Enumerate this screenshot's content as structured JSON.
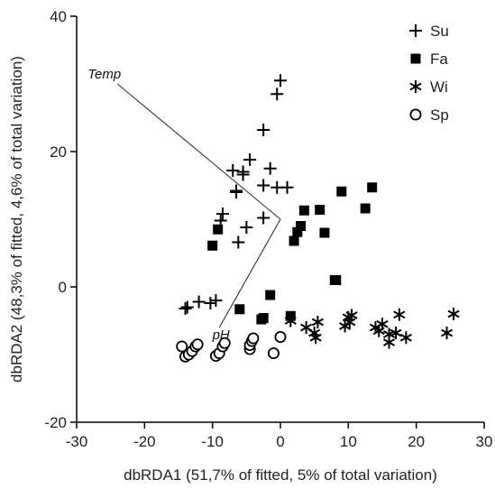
{
  "chart_data": {
    "type": "scatter",
    "xlabel": "dbRDA1 (51,7% of fitted, 5% of total variation)",
    "ylabel": "dbRDA2 (48,3% of fitted, 4,6% of total variation)",
    "xlim": [
      -30,
      30
    ],
    "ylim": [
      -20,
      40
    ],
    "x_ticks": [
      "-30",
      "-20",
      "-10",
      "0",
      "10",
      "20",
      "30"
    ],
    "y_ticks": [
      "-20",
      "0",
      "20",
      "40"
    ],
    "legend_position": "top-right",
    "vectors": [
      {
        "label": "Temp",
        "x": -24,
        "y": 20
      },
      {
        "label": "pH",
        "x": -9,
        "y": -16
      }
    ],
    "series": [
      {
        "name": "Su",
        "marker": "plus",
        "points": [
          [
            0,
            30.5
          ],
          [
            -0.5,
            28.5
          ],
          [
            -2.5,
            23.2
          ],
          [
            -7,
            17.2
          ],
          [
            -5.5,
            17
          ],
          [
            -1.5,
            17.5
          ],
          [
            -4.5,
            18.8
          ],
          [
            -5.5,
            16.6
          ],
          [
            -6.5,
            14.2
          ],
          [
            -6.5,
            14
          ],
          [
            -2.5,
            15
          ],
          [
            -0.5,
            14.7
          ],
          [
            1,
            14.7
          ],
          [
            -2.5,
            10.2
          ],
          [
            -8.5,
            10.8
          ],
          [
            -8.8,
            9.8
          ],
          [
            -5,
            8.8
          ],
          [
            -6.2,
            6.6
          ],
          [
            -13.7,
            -3
          ],
          [
            -14,
            -3.2
          ],
          [
            -12,
            -2.2
          ],
          [
            -10.3,
            -2.4
          ],
          [
            -9.5,
            -2
          ]
        ]
      },
      {
        "name": "Fa",
        "marker": "square",
        "points": [
          [
            -10,
            6.1
          ],
          [
            -9.2,
            8.5
          ],
          [
            -6,
            -3.3
          ],
          [
            -1.5,
            -1.2
          ],
          [
            -2.5,
            -4.6
          ],
          [
            -2.8,
            -4.8
          ],
          [
            1.5,
            -4.3
          ],
          [
            2,
            6.8
          ],
          [
            2.5,
            8.1
          ],
          [
            3,
            9
          ],
          [
            3.5,
            11.3
          ],
          [
            5.8,
            11.4
          ],
          [
            6.5,
            8
          ],
          [
            8,
            1
          ],
          [
            8.2,
            1
          ],
          [
            9,
            14.1
          ],
          [
            12.5,
            11.6
          ],
          [
            13.5,
            14.7
          ]
        ]
      },
      {
        "name": "Wi",
        "marker": "asterisk",
        "points": [
          [
            1.5,
            -5
          ],
          [
            3.8,
            -6
          ],
          [
            5,
            -6.8
          ],
          [
            5.2,
            -7.5
          ],
          [
            5.5,
            -5.2
          ],
          [
            9.5,
            -5.8
          ],
          [
            10,
            -4.5
          ],
          [
            10.2,
            -5.2
          ],
          [
            10.5,
            -4.2
          ],
          [
            14,
            -6
          ],
          [
            14.5,
            -6.5
          ],
          [
            15,
            -5.5
          ],
          [
            16,
            -7
          ],
          [
            16,
            -8.2
          ],
          [
            17,
            -6.8
          ],
          [
            17.5,
            -4.1
          ],
          [
            18.5,
            -7.5
          ],
          [
            24.5,
            -6.8
          ],
          [
            25.5,
            -4
          ]
        ]
      },
      {
        "name": "Sp",
        "marker": "circle",
        "points": [
          [
            -14.5,
            -8.8
          ],
          [
            -14,
            -10.3
          ],
          [
            -13.5,
            -10
          ],
          [
            -13,
            -9.5
          ],
          [
            -12.5,
            -8.8
          ],
          [
            -12.2,
            -8.5
          ],
          [
            -9.5,
            -10.2
          ],
          [
            -9,
            -9.8
          ],
          [
            -8.5,
            -8.8
          ],
          [
            -8.2,
            -8.3
          ],
          [
            -4.5,
            -9.2
          ],
          [
            -4.5,
            -8.6
          ],
          [
            -4.2,
            -8
          ],
          [
            -4,
            -7.6
          ],
          [
            -1,
            -9.8
          ],
          [
            0,
            -7.4
          ]
        ]
      }
    ]
  }
}
